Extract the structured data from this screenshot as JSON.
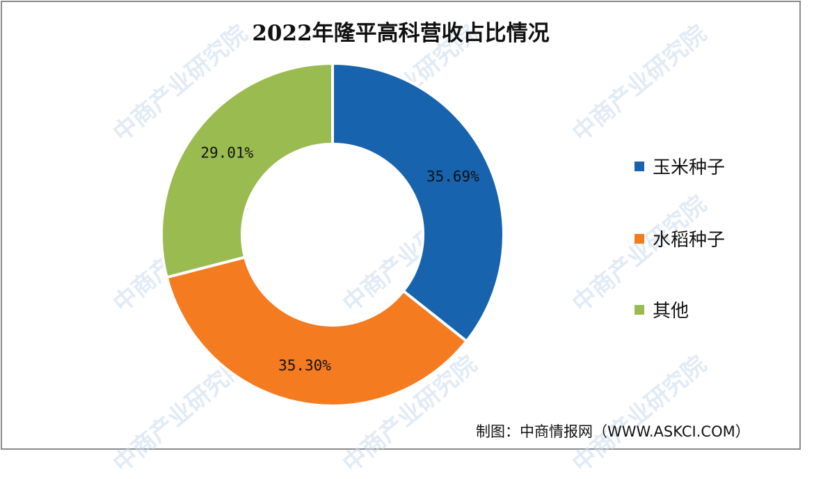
{
  "title": "2022年隆平高科营收占比情况",
  "chart_data": {
    "type": "pie",
    "subtype": "donut",
    "title": "2022年隆平高科营收占比情况",
    "categories": [
      "玉米种子",
      "水稻种子",
      "其他"
    ],
    "values": [
      35.69,
      35.3,
      29.01
    ],
    "unit": "%",
    "data_labels": [
      "35.69%",
      "35.30%",
      "29.01%"
    ],
    "colors": [
      "#1763ad",
      "#f47b20",
      "#99bb4f"
    ],
    "legend_position": "right",
    "start_angle": "12 o'clock, clockwise"
  },
  "legend": {
    "items": [
      {
        "label": "玉米种子",
        "color": "#1763ad"
      },
      {
        "label": "水稻种子",
        "color": "#f47b20"
      },
      {
        "label": "其他",
        "color": "#99bb4f"
      }
    ]
  },
  "source": "制图：中商情报网（WWW.ASKCI.COM）",
  "watermark": "中商产业研究院"
}
